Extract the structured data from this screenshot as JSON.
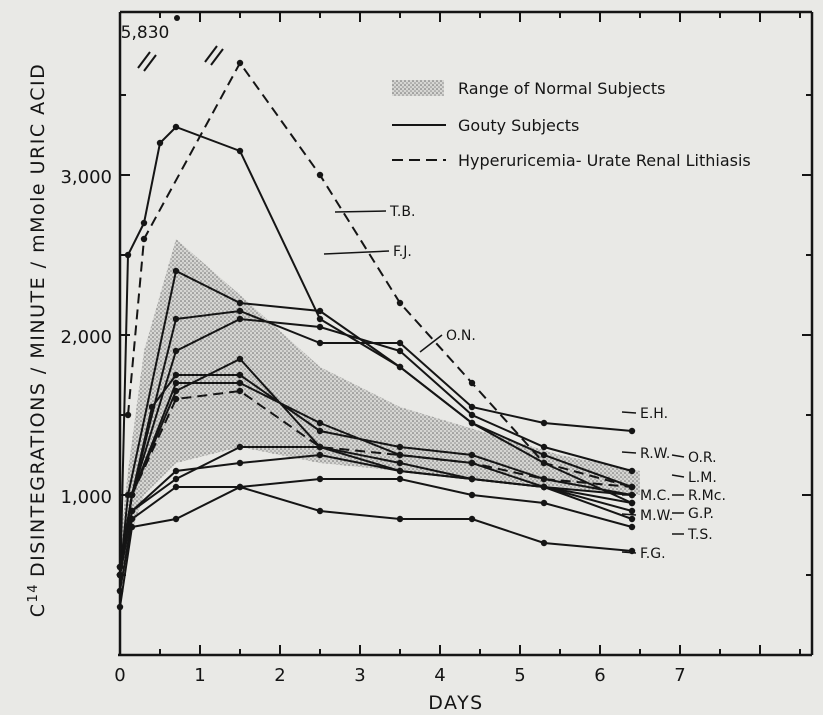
{
  "chart_data": {
    "type": "line",
    "xlabel": "DAYS",
    "ylabel_prefix": "C",
    "ylabel_superscript": "14",
    "ylabel_rest": "DISINTEGRATIONS / MINUTE / mMole URIC ACID",
    "xlim": [
      0,
      8.5
    ],
    "ylim": [
      0,
      4000
    ],
    "x_ticks": [
      "0",
      "1",
      "2",
      "3",
      "4",
      "5",
      "6",
      "7"
    ],
    "y_ticks": [
      "1,000",
      "2,000",
      "3,000"
    ],
    "off_scale_label": "5,830",
    "legend": {
      "normal_range": "Range of Normal Subjects",
      "gouty": "Gouty Subjects",
      "lithiasis": "Hyperuricemia- Urate Renal Lithiasis",
      "placement": "top-right"
    },
    "normal_range": {
      "x": [
        0,
        0.1,
        0.3,
        0.7,
        1.5,
        2.5,
        3.5,
        4.5,
        5.5,
        6.5
      ],
      "upper": [
        700,
        1150,
        1900,
        2600,
        2250,
        1800,
        1550,
        1400,
        1250,
        1150
      ],
      "lower": [
        300,
        700,
        1000,
        1200,
        1300,
        1200,
        1150,
        1100,
        1050,
        1000
      ]
    },
    "series": [
      {
        "name": "T.B.",
        "style": "dashed",
        "x": [
          0.1,
          0.3,
          1.5,
          2.5,
          3.5,
          4.4,
          5.3,
          6.4
        ],
        "y": [
          1500,
          2600,
          3700,
          3000,
          2200,
          1700,
          1200,
          1050
        ]
      },
      {
        "name": "F.J.",
        "style": "solid",
        "x": [
          0,
          0.1,
          0.3,
          0.5,
          0.7,
          1.5,
          2.5,
          3.5,
          4.4,
          5.3,
          6.4
        ],
        "y": [
          400,
          2500,
          2700,
          3200,
          3300,
          3150,
          2100,
          1800,
          1450,
          1250,
          1050
        ]
      },
      {
        "name": "O.N.",
        "style": "solid",
        "x": [
          0,
          0.1,
          0.7,
          1.5,
          2.5,
          3.5,
          4.4,
          5.3,
          6.4
        ],
        "y": [
          500,
          1000,
          2400,
          2200,
          2150,
          1800,
          1450,
          1200,
          950
        ]
      },
      {
        "name": "E.H.",
        "style": "solid",
        "x": [
          0,
          0.15,
          0.7,
          1.5,
          2.5,
          3.5,
          4.4,
          5.3,
          6.4
        ],
        "y": [
          500,
          1000,
          2100,
          2150,
          1950,
          1950,
          1550,
          1450,
          1400
        ]
      },
      {
        "name": "R.W.",
        "style": "solid",
        "x": [
          0,
          0.15,
          0.7,
          1.5,
          2.5,
          3.5,
          4.4,
          5.3,
          6.4
        ],
        "y": [
          550,
          1000,
          1900,
          2100,
          2050,
          1900,
          1500,
          1300,
          1150
        ]
      },
      {
        "name": "O.R.",
        "style": "dashed",
        "x": [
          0,
          0.15,
          0.7,
          1.5,
          2.5,
          3.5,
          4.4,
          5.3,
          6.4
        ],
        "y": [
          500,
          1000,
          1600,
          1650,
          1300,
          1250,
          1200,
          1100,
          1050
        ]
      },
      {
        "name": "L.M.",
        "style": "solid",
        "x": [
          0,
          0.15,
          0.4,
          0.7,
          1.5,
          2.5,
          3.5,
          4.4,
          5.3,
          6.4
        ],
        "y": [
          550,
          1000,
          1550,
          1750,
          1750,
          1400,
          1300,
          1250,
          1100,
          1000
        ]
      },
      {
        "name": "R.Mc.",
        "style": "solid",
        "x": [
          0,
          0.15,
          0.7,
          1.5,
          2.5,
          3.5,
          4.4,
          5.3,
          6.4
        ],
        "y": [
          550,
          1000,
          1700,
          1700,
          1450,
          1250,
          1200,
          1050,
          950
        ]
      },
      {
        "name": "M.C.",
        "style": "solid",
        "x": [
          0,
          0.15,
          0.7,
          1.5,
          2.5,
          3.5,
          4.4,
          5.3,
          6.4
        ],
        "y": [
          500,
          1000,
          1650,
          1850,
          1300,
          1200,
          1100,
          1050,
          1000
        ]
      },
      {
        "name": "G.P.",
        "style": "solid",
        "x": [
          0,
          0.15,
          0.7,
          1.5,
          2.5,
          3.5,
          4.4,
          5.3,
          6.4
        ],
        "y": [
          500,
          900,
          1150,
          1200,
          1250,
          1150,
          1100,
          1050,
          900
        ]
      },
      {
        "name": "M.W.",
        "style": "solid",
        "x": [
          0,
          0.15,
          0.7,
          1.5,
          2.5,
          3.5,
          4.4,
          5.3,
          6.4
        ],
        "y": [
          500,
          900,
          1100,
          1300,
          1300,
          1150,
          1100,
          1050,
          850
        ]
      },
      {
        "name": "T.S.",
        "style": "solid",
        "x": [
          0,
          0.15,
          0.7,
          1.5,
          2.5,
          3.5,
          4.4,
          5.3,
          6.4
        ],
        "y": [
          400,
          850,
          1050,
          1050,
          1100,
          1100,
          1000,
          950,
          800
        ]
      },
      {
        "name": "F.G.",
        "style": "solid",
        "x": [
          0,
          0.15,
          0.7,
          1.5,
          2.5,
          3.5,
          4.4,
          5.3,
          6.4
        ],
        "y": [
          300,
          800,
          850,
          1050,
          900,
          850,
          850,
          700,
          650
        ]
      }
    ],
    "grid": false
  }
}
